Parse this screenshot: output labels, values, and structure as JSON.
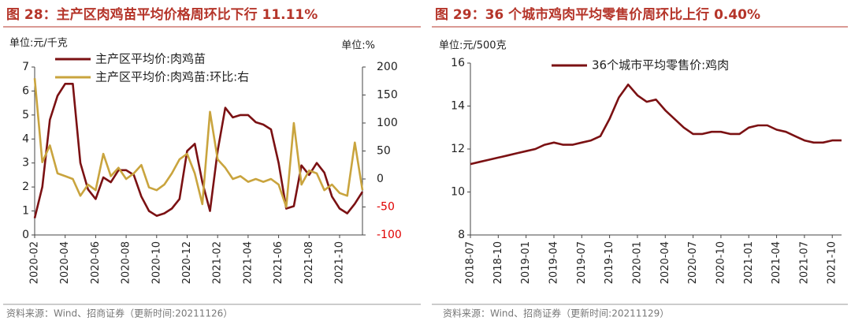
{
  "chart_data": [
    {
      "type": "line",
      "title": "图 28：主产区肉鸡苗平均价格周环比下行 11.11%",
      "y_label": "单位:元/千克",
      "y2_label": "单位:%",
      "source": "资料来源：Wind、招商证券（更新时间:20211126）",
      "categories": [
        "2020-02",
        null,
        null,
        null,
        "2020-04",
        null,
        null,
        null,
        "2020-06",
        null,
        null,
        null,
        "2020-08",
        null,
        null,
        null,
        "2020-10",
        null,
        null,
        null,
        "2020-12",
        null,
        null,
        null,
        "2021-02",
        null,
        null,
        null,
        "2021-04",
        null,
        null,
        null,
        "2021-06",
        null,
        null,
        null,
        "2021-08",
        null,
        null,
        null,
        "2021-10",
        null,
        null,
        null
      ],
      "series": [
        {
          "name": "主产区平均价:肉鸡苗",
          "color": "#7b1113",
          "values": [
            0.7,
            2.0,
            4.8,
            5.8,
            6.3,
            6.3,
            3.0,
            1.9,
            1.5,
            2.4,
            2.2,
            2.7,
            2.7,
            2.5,
            1.6,
            1.0,
            0.8,
            0.9,
            1.1,
            1.5,
            3.5,
            3.8,
            2.2,
            1.0,
            3.5,
            5.3,
            4.9,
            5.0,
            5.0,
            4.7,
            4.6,
            4.4,
            3.0,
            1.1,
            1.2,
            2.9,
            2.5,
            3.0,
            2.6,
            1.6,
            1.1,
            0.9,
            1.3,
            1.8
          ]
        },
        {
          "name": "主产区平均价:肉鸡苗:环比:右",
          "color": "#c9a43e",
          "axis": "y2",
          "values": [
            180,
            30,
            60,
            10,
            5,
            0,
            -30,
            -10,
            -20,
            45,
            5,
            20,
            0,
            10,
            25,
            -15,
            -20,
            -10,
            10,
            35,
            45,
            10,
            -45,
            120,
            35,
            20,
            0,
            5,
            -5,
            0,
            -5,
            0,
            -10,
            -50,
            100,
            -10,
            15,
            10,
            -20,
            -10,
            -25,
            -30,
            65,
            -20
          ]
        }
      ],
      "ylim": [
        0,
        7
      ],
      "yticks": [
        0,
        1,
        2,
        3,
        4,
        5,
        6,
        7
      ],
      "y2lim": [
        -100,
        200
      ],
      "y2ticks": [
        -100,
        -50,
        0,
        50,
        100,
        150,
        200
      ],
      "negative_tick_color": "#e00000"
    },
    {
      "type": "line",
      "title": "图 29：36 个城市鸡肉平均零售价周环比上行 0.40%",
      "y_label": "单位:元/500克",
      "source": "资料来源：Wind、招商证券（更新时间:20211129）",
      "categories": [
        "2018-07",
        null,
        null,
        "2018-10",
        null,
        null,
        "2019-01",
        null,
        null,
        "2019-04",
        null,
        null,
        "2019-07",
        null,
        null,
        "2019-10",
        null,
        null,
        "2020-01",
        null,
        null,
        "2020-04",
        null,
        null,
        "2020-07",
        null,
        null,
        "2020-10",
        null,
        null,
        "2021-01",
        null,
        null,
        "2021-04",
        null,
        null,
        "2021-07",
        null,
        null,
        "2021-10",
        null
      ],
      "series": [
        {
          "name": "36个城市平均零售价:鸡肉",
          "color": "#7b1113",
          "values": [
            11.3,
            11.4,
            11.5,
            11.6,
            11.7,
            11.8,
            11.9,
            12.0,
            12.2,
            12.3,
            12.2,
            12.2,
            12.3,
            12.4,
            12.6,
            13.4,
            14.4,
            15.0,
            14.5,
            14.2,
            14.3,
            13.8,
            13.4,
            13.0,
            12.7,
            12.7,
            12.8,
            12.8,
            12.7,
            12.7,
            13.0,
            13.1,
            13.1,
            12.9,
            12.8,
            12.6,
            12.4,
            12.3,
            12.3,
            12.4,
            12.4
          ]
        }
      ],
      "ylim": [
        8,
        16
      ],
      "yticks": [
        8,
        10,
        12,
        14,
        16
      ]
    }
  ]
}
